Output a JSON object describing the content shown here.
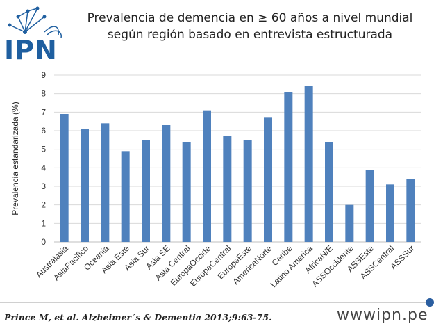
{
  "logo": {
    "text": "IPN",
    "icon": "network-head-logo-icon"
  },
  "title_line1": "Prevalencia de demencia en ≥ 60 años a nivel mundial",
  "title_line2": "según región basado en entrevista estructurada",
  "citation": "Prince M, et al. Alzheimer´s & Dementia 2013;9:63-75.",
  "website": "wwwipn.pe",
  "colors": {
    "bar": "#4f81bd",
    "grid": "#d9d9d9",
    "logo": "#1f5fa0",
    "footer_dot": "#2a5ea0"
  },
  "chart_data": {
    "type": "bar",
    "title": "Prevalencia de demencia en ≥ 60 años a nivel mundial según región basado en entrevista estructurada",
    "xlabel": "",
    "ylabel": "Prevalencia estandarizada (%)",
    "ylim": [
      0,
      9
    ],
    "yticks": [
      0,
      1,
      2,
      3,
      4,
      5,
      6,
      7,
      8,
      9
    ],
    "grid": true,
    "legend": "none",
    "categories": [
      "Australasia",
      "AsiaPacifico",
      "Oceania",
      "Asia Este",
      "Asia Sur",
      "Asia SE",
      "Asia Central",
      "EuropaOccide",
      "EuropaCentral",
      "EuropaEste",
      "AmericaNorte",
      "Caribe",
      "Latino America",
      "AfricaN/E",
      "ASSOccidente",
      "ASSEste",
      "ASSCentral",
      "ASSSur"
    ],
    "values": [
      6.9,
      6.1,
      6.4,
      4.9,
      5.5,
      6.3,
      5.4,
      7.1,
      5.7,
      5.5,
      6.7,
      8.1,
      8.4,
      5.4,
      2.0,
      3.9,
      3.1,
      3.4
    ]
  }
}
